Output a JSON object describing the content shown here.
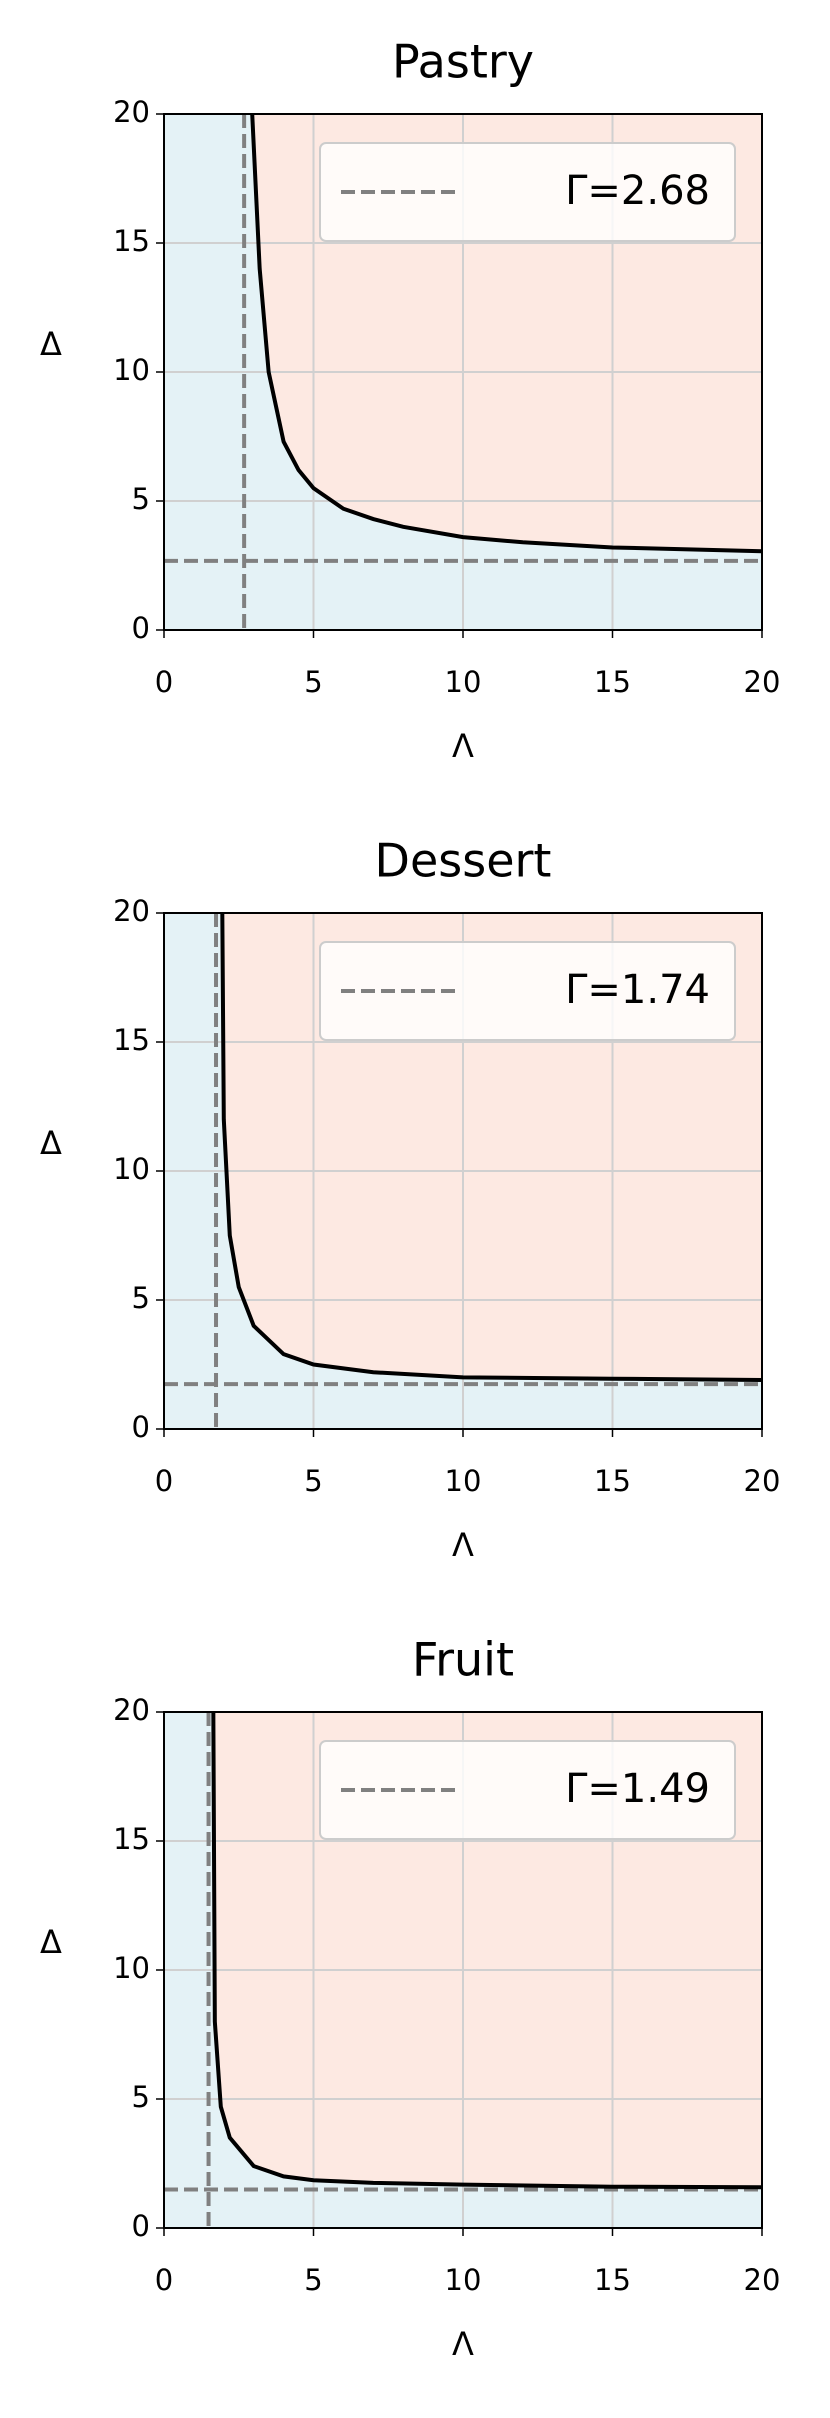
{
  "chart_data": [
    {
      "type": "line",
      "title": "Pastry",
      "x_label": "Λ",
      "y_label": "Δ",
      "xlim": [
        0,
        20
      ],
      "ylim": [
        0,
        20
      ],
      "xticks": [
        0,
        5,
        10,
        15,
        20
      ],
      "yticks": [
        0,
        5,
        10,
        15,
        20
      ],
      "grid": true,
      "legend": "upper right",
      "region_colors": [
        "#e4f2f6",
        "#fde9e2"
      ],
      "threshold": {
        "name": "Γ=2.68",
        "value": 2.68,
        "color": "#808080"
      },
      "curve": {
        "color": "#000000",
        "x": [
          2.95,
          3.2,
          3.5,
          4,
          4.5,
          5,
          6,
          7,
          8,
          10,
          12,
          15,
          20
        ],
        "y": [
          20,
          14,
          10,
          7.3,
          6.2,
          5.5,
          4.7,
          4.3,
          4.0,
          3.6,
          3.4,
          3.2,
          3.05
        ]
      }
    },
    {
      "type": "line",
      "title": "Dessert",
      "x_label": "Λ",
      "y_label": "Δ",
      "xlim": [
        0,
        20
      ],
      "ylim": [
        0,
        20
      ],
      "xticks": [
        0,
        5,
        10,
        15,
        20
      ],
      "yticks": [
        0,
        5,
        10,
        15,
        20
      ],
      "grid": true,
      "legend": "upper right",
      "region_colors": [
        "#e4f2f6",
        "#fde9e2"
      ],
      "threshold": {
        "name": "Γ=1.74",
        "value": 1.74,
        "color": "#808080"
      },
      "curve": {
        "color": "#000000",
        "x": [
          1.95,
          2.0,
          2.2,
          2.5,
          3,
          4,
          5,
          7,
          10,
          15,
          20
        ],
        "y": [
          20,
          12,
          7.5,
          5.5,
          4.0,
          2.9,
          2.5,
          2.2,
          2.0,
          1.95,
          1.9
        ]
      }
    },
    {
      "type": "line",
      "title": "Fruit",
      "x_label": "Λ",
      "y_label": "Δ",
      "xlim": [
        0,
        20
      ],
      "ylim": [
        0,
        20
      ],
      "xticks": [
        0,
        5,
        10,
        15,
        20
      ],
      "yticks": [
        0,
        5,
        10,
        15,
        20
      ],
      "grid": true,
      "legend": "upper right",
      "region_colors": [
        "#e4f2f6",
        "#fde9e2"
      ],
      "threshold": {
        "name": "Γ=1.49",
        "value": 1.49,
        "color": "#808080"
      },
      "curve": {
        "color": "#000000",
        "x": [
          1.65,
          1.7,
          1.9,
          2.2,
          3,
          4,
          5,
          7,
          10,
          15,
          20
        ],
        "y": [
          20,
          8,
          4.7,
          3.5,
          2.4,
          2.0,
          1.85,
          1.75,
          1.68,
          1.6,
          1.58
        ]
      }
    }
  ]
}
